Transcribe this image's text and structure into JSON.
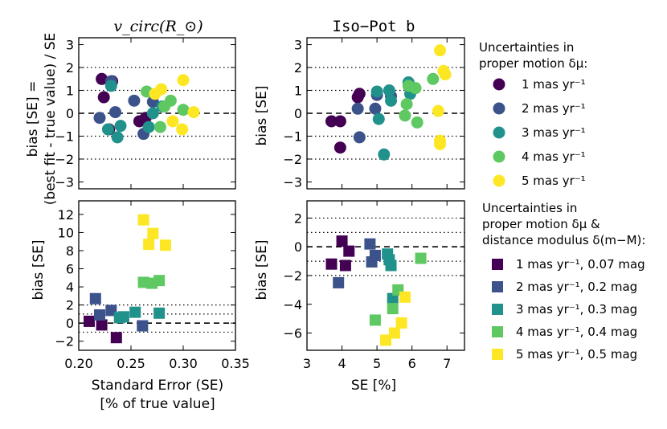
{
  "colors": {
    "1": "#440154",
    "2": "#3b528b",
    "3": "#21918c",
    "4": "#5ec962",
    "5": "#fde725"
  },
  "titles": {
    "left": "v_circ(R_⊙)",
    "right": "Iso−Pot b"
  },
  "ylabels": {
    "top_left_line1": "bias [SE] =",
    "top_left_line2": "(best fit - true value) / SE",
    "top_right": "bias [SE]",
    "bottom_left": "bias [SE]",
    "bottom_right": "bias [SE]"
  },
  "xlabels": {
    "left_line1": "Standard Error (SE)",
    "left_line2": "[% of true value]",
    "right": "SE [%]"
  },
  "legend_top": {
    "title_line1": "Uncertainties in",
    "title_line2": "proper motion δμ:",
    "items": [
      "1 mas yr⁻¹",
      "2 mas yr⁻¹",
      "3 mas yr⁻¹",
      "4 mas yr⁻¹",
      "5 mas yr⁻¹"
    ]
  },
  "legend_bottom": {
    "title_line1": "Uncertainties in",
    "title_line2": "proper motion δμ &",
    "title_line3": "distance modulus δ(m−M):",
    "items": [
      "1 mas yr⁻¹, 0.07 mag",
      "2 mas yr⁻¹, 0.2 mag",
      "3 mas yr⁻¹, 0.3 mag",
      "4 mas yr⁻¹, 0.4 mag",
      "5 mas yr⁻¹, 0.5 mag"
    ]
  },
  "chart_data": [
    {
      "type": "scatter",
      "panel": "top-left",
      "marker": "circle",
      "xlim": [
        0.2,
        0.35
      ],
      "ylim": [
        -3.3,
        3.3
      ],
      "xticks": [
        0.2,
        0.25,
        0.3,
        0.35
      ],
      "yticks": [
        -3,
        -2,
        -1,
        0,
        1,
        2,
        3
      ],
      "yticklabels": [
        "−3",
        "−2",
        "−1",
        "0",
        "1",
        "2",
        "3"
      ],
      "dotted_y": [
        -2,
        -1,
        1,
        2
      ],
      "dashed_y": [
        0
      ],
      "series": [
        {
          "name": "1",
          "x": [
            0.222,
            0.224,
            0.229,
            0.232,
            0.258,
            0.264
          ],
          "y": [
            1.5,
            0.7,
            -0.7,
            1.4,
            -0.35,
            -0.2
          ]
        },
        {
          "name": "2",
          "x": [
            0.22,
            0.231,
            0.235,
            0.253,
            0.262,
            0.271
          ],
          "y": [
            -0.2,
            1.4,
            0.05,
            0.55,
            -0.9,
            0.5
          ]
        },
        {
          "name": "3",
          "x": [
            0.228,
            0.231,
            0.237,
            0.24,
            0.267,
            0.271,
            0.28
          ],
          "y": [
            -0.7,
            1.2,
            -1.05,
            -0.55,
            -0.6,
            0.0,
            0.3
          ]
        },
        {
          "name": "4",
          "x": [
            0.265,
            0.278,
            0.282,
            0.288,
            0.3
          ],
          "y": [
            0.95,
            -0.6,
            0.3,
            0.55,
            0.15
          ]
        },
        {
          "name": "5",
          "x": [
            0.273,
            0.279,
            0.29,
            0.299,
            0.3,
            0.31
          ],
          "y": [
            0.85,
            1.05,
            -0.35,
            -0.7,
            1.45,
            0.05
          ]
        }
      ]
    },
    {
      "type": "scatter",
      "panel": "top-right",
      "marker": "circle",
      "xlim": [
        3,
        7.5
      ],
      "ylim": [
        -3.3,
        3.3
      ],
      "xticks": [
        3,
        4,
        5,
        6,
        7
      ],
      "yticks": [
        -3,
        -2,
        -1,
        0,
        1,
        2,
        3
      ],
      "yticklabels": [
        "−3",
        "−2",
        "−1",
        "0",
        "1",
        "2",
        "3"
      ],
      "dotted_y": [
        -2,
        -1,
        1,
        2
      ],
      "dashed_y": [
        0
      ],
      "series": [
        {
          "name": "1",
          "x": [
            3.7,
            3.95,
            3.95,
            4.5,
            4.45
          ],
          "y": [
            -0.35,
            -0.35,
            -1.5,
            0.85,
            0.7
          ]
        },
        {
          "name": "2",
          "x": [
            4.45,
            4.5,
            4.95,
            5.0,
            5.4
          ],
          "y": [
            0.2,
            -1.05,
            0.2,
            0.8,
            0.75
          ]
        },
        {
          "name": "3",
          "x": [
            5.0,
            5.05,
            5.2,
            5.35,
            5.4,
            5.9,
            5.95
          ],
          "y": [
            0.95,
            -0.25,
            -1.8,
            1.0,
            0.55,
            1.35,
            0.85
          ]
        },
        {
          "name": "4",
          "x": [
            5.8,
            5.85,
            5.9,
            6.1,
            6.15,
            6.6
          ],
          "y": [
            -0.1,
            0.4,
            1.2,
            1.1,
            -0.4,
            1.5
          ]
        },
        {
          "name": "5",
          "x": [
            6.75,
            6.8,
            6.8,
            6.8,
            6.9,
            6.95
          ],
          "y": [
            0.1,
            -1.2,
            -1.35,
            2.75,
            1.85,
            1.7
          ]
        }
      ]
    },
    {
      "type": "scatter",
      "panel": "bottom-left",
      "marker": "square",
      "xlim": [
        0.2,
        0.35
      ],
      "ylim": [
        -3,
        13.5
      ],
      "xticks": [
        0.2,
        0.25,
        0.3,
        0.35
      ],
      "xticklabels": [
        "0.20",
        "0.25",
        "0.30",
        "0.35"
      ],
      "yticks": [
        -2,
        0,
        2,
        4,
        6,
        8,
        10,
        12
      ],
      "yticklabels": [
        "−2",
        "0",
        "2",
        "4",
        "6",
        "8",
        "10",
        "12"
      ],
      "dotted_y": [
        -1,
        1,
        2
      ],
      "dashed_y": [
        0
      ],
      "series": [
        {
          "name": "1",
          "x": [
            0.21,
            0.222,
            0.236
          ],
          "y": [
            0.2,
            -0.2,
            -1.6
          ]
        },
        {
          "name": "2",
          "x": [
            0.216,
            0.22,
            0.231,
            0.261
          ],
          "y": [
            2.7,
            0.9,
            1.4,
            -0.3
          ]
        },
        {
          "name": "3",
          "x": [
            0.239,
            0.243,
            0.254,
            0.277
          ],
          "y": [
            0.6,
            0.7,
            1.2,
            1.1
          ]
        },
        {
          "name": "4",
          "x": [
            0.262,
            0.27,
            0.277
          ],
          "y": [
            4.5,
            4.4,
            4.7
          ]
        },
        {
          "name": "5",
          "x": [
            0.262,
            0.267,
            0.271,
            0.283
          ],
          "y": [
            11.4,
            8.7,
            9.9,
            8.6
          ]
        }
      ]
    },
    {
      "type": "scatter",
      "panel": "bottom-right",
      "marker": "square",
      "xlim": [
        3,
        7.5
      ],
      "ylim": [
        -7.2,
        3.2
      ],
      "xticks": [
        3,
        4,
        5,
        6,
        7
      ],
      "yticks": [
        -6,
        -4,
        -2,
        0,
        2
      ],
      "yticklabels": [
        "−6",
        "−4",
        "−2",
        "0",
        "2"
      ],
      "dotted_y": [
        -2,
        -1,
        1,
        2
      ],
      "dashed_y": [
        0
      ],
      "series": [
        {
          "name": "1",
          "x": [
            3.7,
            4.0,
            4.1,
            4.2
          ],
          "y": [
            -1.2,
            0.4,
            -1.3,
            -0.3
          ]
        },
        {
          "name": "2",
          "x": [
            3.9,
            4.8,
            4.85,
            4.95
          ],
          "y": [
            -2.5,
            0.2,
            -1.05,
            -0.6
          ]
        },
        {
          "name": "3",
          "x": [
            5.3,
            5.35,
            5.4,
            5.45
          ],
          "y": [
            -0.5,
            -0.9,
            -1.3,
            -3.6
          ]
        },
        {
          "name": "4",
          "x": [
            4.95,
            5.45,
            5.6,
            6.25
          ],
          "y": [
            -5.1,
            -4.3,
            -3.0,
            -0.8
          ]
        },
        {
          "name": "5",
          "x": [
            5.25,
            5.5,
            5.7,
            5.8
          ],
          "y": [
            -6.5,
            -6.0,
            -5.3,
            -3.5
          ]
        }
      ]
    }
  ]
}
